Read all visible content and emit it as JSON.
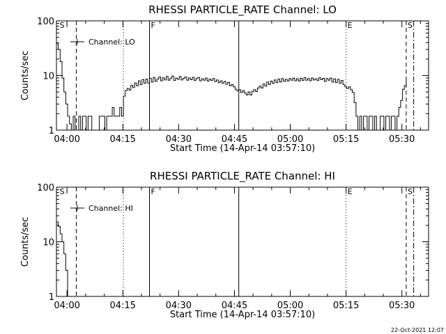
{
  "footer": {
    "date": "22-Oct-2021 12:07"
  },
  "chart_data": [
    {
      "type": "line",
      "title": "RHESSI PARTICLE_RATE Channel: LO",
      "xlabel": "Start Time (14-Apr-14 03:57:10)",
      "ylabel": "Counts/sec",
      "yscale": "log",
      "ylim": [
        1,
        100
      ],
      "xlim": [
        "03:57:10",
        "05:37:10"
      ],
      "yticks": [
        {
          "v": 1,
          "label": "1"
        },
        {
          "v": 10,
          "label": "10"
        },
        {
          "v": 100,
          "label": "100"
        }
      ],
      "xticks": [
        {
          "t": "04:00",
          "label": "04:00"
        },
        {
          "t": "04:15",
          "label": "04:15"
        },
        {
          "t": "04:30",
          "label": "04:30"
        },
        {
          "t": "04:45",
          "label": "04:45"
        },
        {
          "t": "05:00",
          "label": "05:00"
        },
        {
          "t": "05:15",
          "label": "05:15"
        },
        {
          "t": "05:30",
          "label": "05:30"
        }
      ],
      "legend": {
        "entry": "Channel: LO",
        "placement": "top-left"
      },
      "markers": [
        {
          "t": "03:57:40",
          "style": "none",
          "label": "S"
        },
        {
          "t": "04:02:30",
          "style": "dashed",
          "label": ""
        },
        {
          "t": "04:15:10",
          "style": "dotted",
          "label": ""
        },
        {
          "t": "04:22:10",
          "style": "solid",
          "label": "F"
        },
        {
          "t": "04:46:10",
          "style": "solid",
          "label": ""
        },
        {
          "t": "05:15:00",
          "style": "dotted",
          "label": "E"
        },
        {
          "t": "05:31:10",
          "style": "dashed",
          "label": "S"
        },
        {
          "t": "05:33:10",
          "style": "dashdot",
          "label": ""
        }
      ],
      "series": [
        {
          "values": [
            [
              "03:57:10",
              38
            ],
            [
              "03:57:40",
              30
            ],
            [
              "03:58:10",
              18
            ],
            [
              "03:58:40",
              9
            ],
            [
              "03:59:10",
              5
            ],
            [
              "03:59:40",
              3
            ],
            [
              "04:00:10",
              1.8
            ],
            [
              "04:00:40",
              1.3
            ],
            [
              "04:01:10",
              1
            ],
            [
              "04:01:40",
              1.8
            ],
            [
              "04:02:10",
              1
            ],
            [
              "04:02:40",
              1
            ],
            [
              "04:03:10",
              1.8
            ],
            [
              "04:03:40",
              1
            ],
            [
              "04:04:10",
              1.8
            ],
            [
              "04:04:40",
              1.8
            ],
            [
              "04:05:10",
              1
            ],
            [
              "04:05:40",
              1.8
            ],
            [
              "04:06:10",
              1.8
            ],
            [
              "04:06:40",
              1
            ],
            [
              "04:07:10",
              1
            ],
            [
              "04:07:40",
              1
            ],
            [
              "04:08:10",
              1
            ],
            [
              "04:08:40",
              1.8
            ],
            [
              "04:09:10",
              1.8
            ],
            [
              "04:09:40",
              1.8
            ],
            [
              "04:10:10",
              1
            ],
            [
              "04:10:40",
              1.8
            ],
            [
              "04:11:10",
              1.8
            ],
            [
              "04:11:40",
              1.8
            ],
            [
              "04:12:10",
              2.6
            ],
            [
              "04:12:40",
              1.8
            ],
            [
              "04:13:10",
              1.8
            ],
            [
              "04:13:40",
              1.8
            ],
            [
              "04:14:10",
              2.6
            ],
            [
              "04:14:40",
              1.8
            ],
            [
              "04:15:10",
              4.2
            ],
            [
              "04:15:40",
              5.3
            ],
            [
              "04:16:10",
              5.8
            ],
            [
              "04:16:40",
              5.4
            ],
            [
              "04:17:10",
              6.6
            ],
            [
              "04:17:40",
              6
            ],
            [
              "04:18:10",
              7.3
            ],
            [
              "04:18:40",
              6.5
            ],
            [
              "04:19:10",
              8
            ],
            [
              "04:19:40",
              6.8
            ],
            [
              "04:20:10",
              8.4
            ],
            [
              "04:20:40",
              7.2
            ],
            [
              "04:21:10",
              8.6
            ],
            [
              "04:21:40",
              7.3
            ],
            [
              "04:22:10",
              8.9
            ],
            [
              "04:22:40",
              7.6
            ],
            [
              "04:23:10",
              9.2
            ],
            [
              "04:23:40",
              7.8
            ],
            [
              "04:24:10",
              8.6
            ],
            [
              "04:24:40",
              9.4
            ],
            [
              "04:25:10",
              8
            ],
            [
              "04:25:40",
              9.1
            ],
            [
              "04:26:10",
              8.3
            ],
            [
              "04:26:40",
              9.6
            ],
            [
              "04:27:10",
              8.2
            ],
            [
              "04:27:40",
              8.9
            ],
            [
              "04:28:10",
              9.8
            ],
            [
              "04:28:40",
              8.1
            ],
            [
              "04:29:10",
              9
            ],
            [
              "04:29:40",
              8.5
            ],
            [
              "04:30:10",
              9.6
            ],
            [
              "04:30:40",
              8.3
            ],
            [
              "04:31:10",
              8.9
            ],
            [
              "04:31:40",
              9.4
            ],
            [
              "04:32:10",
              8.2
            ],
            [
              "04:32:40",
              9
            ],
            [
              "04:33:10",
              8.4
            ],
            [
              "04:33:40",
              9.3
            ],
            [
              "04:34:10",
              8.1
            ],
            [
              "04:34:40",
              8.8
            ],
            [
              "04:35:10",
              9.2
            ],
            [
              "04:35:40",
              8
            ],
            [
              "04:36:10",
              8.7
            ],
            [
              "04:36:40",
              8.2
            ],
            [
              "04:37:10",
              9
            ],
            [
              "04:37:40",
              7.9
            ],
            [
              "04:38:10",
              8.6
            ],
            [
              "04:38:40",
              8.1
            ],
            [
              "04:39:10",
              8.8
            ],
            [
              "04:39:40",
              7.7
            ],
            [
              "04:40:10",
              8.3
            ],
            [
              "04:40:40",
              7.4
            ],
            [
              "04:41:10",
              8
            ],
            [
              "04:41:40",
              7.2
            ],
            [
              "04:42:10",
              7.8
            ],
            [
              "04:42:40",
              6.9
            ],
            [
              "04:43:10",
              7.5
            ],
            [
              "04:43:40",
              6.5
            ],
            [
              "04:44:10",
              6.8
            ],
            [
              "04:44:40",
              6.2
            ],
            [
              "04:45:10",
              5.6
            ],
            [
              "04:45:40",
              5.2
            ],
            [
              "04:46:10",
              5.5
            ],
            [
              "04:46:40",
              4.9
            ],
            [
              "04:47:10",
              5.3
            ],
            [
              "04:47:40",
              4.8
            ],
            [
              "04:48:10",
              4.4
            ],
            [
              "04:48:40",
              5
            ],
            [
              "04:49:10",
              4.4
            ],
            [
              "04:49:40",
              5.1
            ],
            [
              "04:50:10",
              5.5
            ],
            [
              "04:50:40",
              5.1
            ],
            [
              "04:51:10",
              5.9
            ],
            [
              "04:51:40",
              6.4
            ],
            [
              "04:52:10",
              5.9
            ],
            [
              "04:52:40",
              7
            ],
            [
              "04:53:10",
              6.4
            ],
            [
              "04:53:40",
              7.6
            ],
            [
              "04:54:10",
              6.8
            ],
            [
              "04:54:40",
              7.9
            ],
            [
              "04:55:10",
              7.2
            ],
            [
              "04:55:40",
              8.3
            ],
            [
              "04:56:10",
              7.4
            ],
            [
              "04:56:40",
              8.6
            ],
            [
              "04:57:10",
              7.6
            ],
            [
              "04:57:40",
              8.8
            ],
            [
              "04:58:10",
              7.8
            ],
            [
              "04:58:40",
              8.5
            ],
            [
              "04:59:10",
              7.9
            ],
            [
              "04:59:40",
              8.8
            ],
            [
              "05:00:10",
              8.2
            ],
            [
              "05:00:40",
              9
            ],
            [
              "05:01:10",
              8
            ],
            [
              "05:01:40",
              8.7
            ],
            [
              "05:02:10",
              7.9
            ],
            [
              "05:02:40",
              8.9
            ],
            [
              "05:03:10",
              8.1
            ],
            [
              "05:03:40",
              9.2
            ],
            [
              "05:04:10",
              8.2
            ],
            [
              "05:04:40",
              8.8
            ],
            [
              "05:05:10",
              8
            ],
            [
              "05:05:40",
              9
            ],
            [
              "05:06:10",
              8.3
            ],
            [
              "05:06:40",
              8.7
            ],
            [
              "05:07:10",
              8.1
            ],
            [
              "05:07:40",
              9.1
            ],
            [
              "05:08:10",
              8.4
            ],
            [
              "05:08:40",
              8.9
            ],
            [
              "05:09:10",
              7.8
            ],
            [
              "05:09:40",
              8.8
            ],
            [
              "05:10:10",
              8.2
            ],
            [
              "05:10:40",
              9
            ],
            [
              "05:11:10",
              7.6
            ],
            [
              "05:11:40",
              8.7
            ],
            [
              "05:12:10",
              7.4
            ],
            [
              "05:12:40",
              8.5
            ],
            [
              "05:13:10",
              7.2
            ],
            [
              "05:13:40",
              8.1
            ],
            [
              "05:14:10",
              6.8
            ],
            [
              "05:14:40",
              6.2
            ],
            [
              "05:15:10",
              5.8
            ],
            [
              "05:15:40",
              6.2
            ],
            [
              "05:16:10",
              5.5
            ],
            [
              "05:16:40",
              4.9
            ],
            [
              "05:17:10",
              3.2
            ],
            [
              "05:17:40",
              1.8
            ],
            [
              "05:18:10",
              1
            ],
            [
              "05:18:40",
              1.8
            ],
            [
              "05:19:10",
              1
            ],
            [
              "05:19:40",
              1.8
            ],
            [
              "05:20:10",
              1.8
            ],
            [
              "05:20:40",
              1
            ],
            [
              "05:21:10",
              1.8
            ],
            [
              "05:21:40",
              1.8
            ],
            [
              "05:22:10",
              1
            ],
            [
              "05:22:40",
              1.8
            ],
            [
              "05:23:10",
              1
            ],
            [
              "05:23:40",
              1
            ],
            [
              "05:24:10",
              1.8
            ],
            [
              "05:24:40",
              1.8
            ],
            [
              "05:25:10",
              1
            ],
            [
              "05:25:40",
              1.8
            ],
            [
              "05:26:10",
              1.8
            ],
            [
              "05:26:40",
              1
            ],
            [
              "05:27:10",
              1.8
            ],
            [
              "05:27:40",
              1.8
            ],
            [
              "05:28:10",
              1
            ],
            [
              "05:28:40",
              1.8
            ],
            [
              "05:29:10",
              2.6
            ],
            [
              "05:29:40",
              3.5
            ],
            [
              "05:30:10",
              5.6
            ],
            [
              "05:30:40",
              6.5
            ],
            [
              "05:31:10",
              8.5
            ]
          ]
        }
      ]
    },
    {
      "type": "line",
      "title": "RHESSI PARTICLE_RATE Channel: HI",
      "xlabel": "Start Time (14-Apr-14 03:57:10)",
      "ylabel": "Counts/sec",
      "yscale": "log",
      "ylim": [
        1,
        100
      ],
      "xlim": [
        "03:57:10",
        "05:37:10"
      ],
      "yticks": [
        {
          "v": 1,
          "label": "1"
        },
        {
          "v": 10,
          "label": "10"
        },
        {
          "v": 100,
          "label": "100"
        }
      ],
      "xticks": [
        {
          "t": "04:00",
          "label": "04:00"
        },
        {
          "t": "04:15",
          "label": "04:15"
        },
        {
          "t": "04:30",
          "label": "04:30"
        },
        {
          "t": "04:45",
          "label": "04:45"
        },
        {
          "t": "05:00",
          "label": "05:00"
        },
        {
          "t": "05:15",
          "label": "05:15"
        },
        {
          "t": "05:30",
          "label": "05:30"
        }
      ],
      "legend": {
        "entry": "Channel: HI",
        "placement": "top-left"
      },
      "markers": [
        {
          "t": "03:57:40",
          "style": "none",
          "label": "S"
        },
        {
          "t": "04:02:30",
          "style": "dashed",
          "label": ""
        },
        {
          "t": "04:15:10",
          "style": "dotted",
          "label": ""
        },
        {
          "t": "04:22:10",
          "style": "solid",
          "label": "F"
        },
        {
          "t": "04:46:10",
          "style": "solid",
          "label": ""
        },
        {
          "t": "05:15:00",
          "style": "dotted",
          "label": "E"
        },
        {
          "t": "05:31:10",
          "style": "dashed",
          "label": "S"
        },
        {
          "t": "05:33:10",
          "style": "dashdot",
          "label": ""
        }
      ],
      "series": [
        {
          "values": [
            [
              "03:57:10",
              23
            ],
            [
              "03:57:40",
              19
            ],
            [
              "03:58:10",
              14
            ],
            [
              "03:58:40",
              10
            ],
            [
              "03:59:10",
              6
            ],
            [
              "03:59:40",
              3
            ],
            [
              "04:00:10",
              1
            ]
          ]
        }
      ]
    }
  ]
}
